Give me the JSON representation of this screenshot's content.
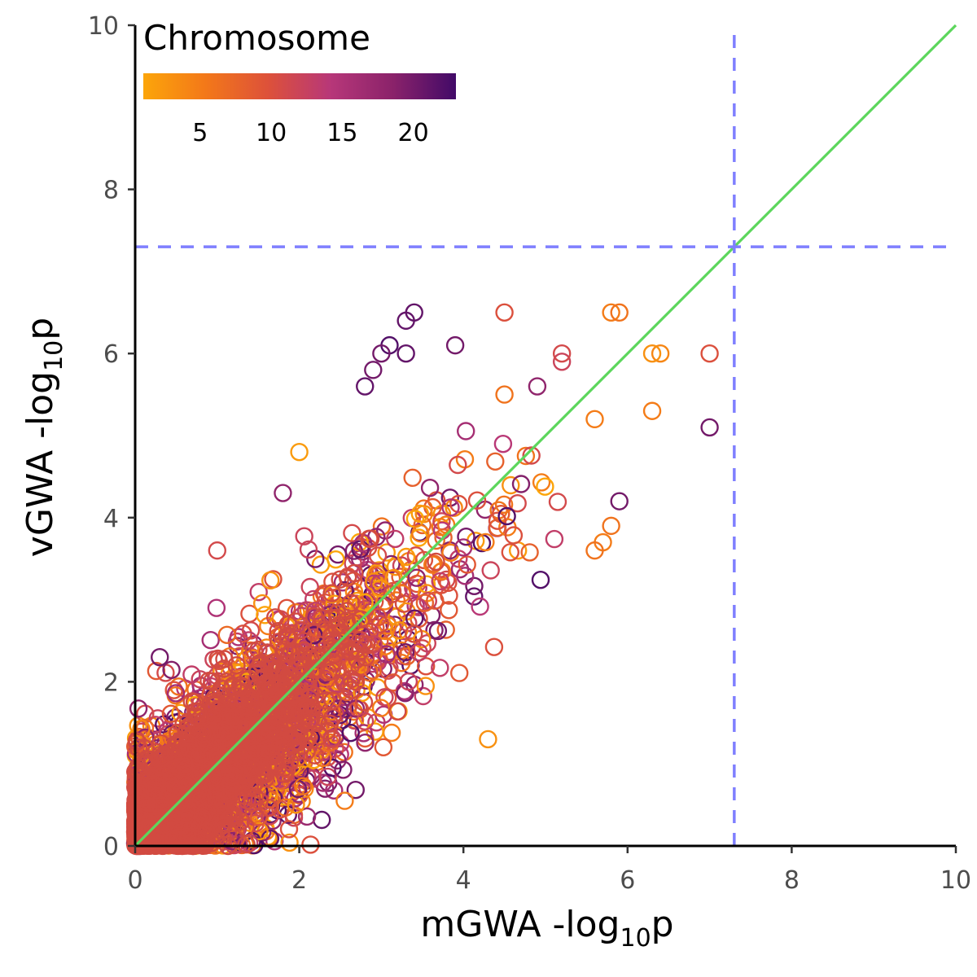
{
  "chart_data": {
    "type": "scatter",
    "xlabel": "mGWA -log10p",
    "ylabel": "vGWA -log10p",
    "xlabel_main": "mGWA -log",
    "xlabel_sub": "10",
    "xlabel_tail": "p",
    "ylabel_main": "vGWA -log",
    "ylabel_sub": "10",
    "ylabel_tail": "p",
    "xlim": [
      0,
      10
    ],
    "ylim": [
      0,
      10
    ],
    "x_ticks": [
      "0",
      "2",
      "4",
      "6",
      "8",
      "10"
    ],
    "y_ticks": [
      "0",
      "2",
      "4",
      "6",
      "8",
      "10"
    ],
    "grid": false,
    "marker": "open-circle",
    "reference_lines": {
      "identity": {
        "from": [
          0,
          0
        ],
        "to": [
          10,
          10
        ],
        "color": "#5cd65c"
      },
      "vertical_threshold": {
        "x": 7.3,
        "color": "#7f7fff",
        "style": "dashed"
      },
      "horizontal_threshold": {
        "y": 7.3,
        "color": "#7f7fff",
        "style": "dashed"
      }
    },
    "legend": {
      "title": "Chromosome",
      "type": "colorbar",
      "placement": "top-left",
      "range": [
        1,
        23
      ],
      "tick_values": [
        5,
        10,
        15,
        20
      ],
      "tick_labels": [
        "5",
        "10",
        "15",
        "20"
      ],
      "colors": [
        "#fca50a",
        "#f37819",
        "#dd513a",
        "#b73779",
        "#8a226a",
        "#420a68"
      ]
    },
    "series_summary": "dense cloud of SNP points along the identity line, most within 0–5 on both axes",
    "highlight_points": [
      {
        "x": 3.4,
        "y": 6.5,
        "chr": 21
      },
      {
        "x": 3.3,
        "y": 6.4,
        "chr": 21
      },
      {
        "x": 3.1,
        "y": 6.1,
        "chr": 22
      },
      {
        "x": 3.0,
        "y": 6.0,
        "chr": 20
      },
      {
        "x": 2.9,
        "y": 5.8,
        "chr": 20
      },
      {
        "x": 2.8,
        "y": 5.6,
        "chr": 21
      },
      {
        "x": 3.3,
        "y": 6.0,
        "chr": 21
      },
      {
        "x": 3.9,
        "y": 6.1,
        "chr": 20
      },
      {
        "x": 4.5,
        "y": 6.5,
        "chr": 10
      },
      {
        "x": 5.2,
        "y": 5.9,
        "chr": 12
      },
      {
        "x": 5.2,
        "y": 6.0,
        "chr": 11
      },
      {
        "x": 5.8,
        "y": 6.5,
        "chr": 5
      },
      {
        "x": 5.9,
        "y": 6.5,
        "chr": 6
      },
      {
        "x": 6.4,
        "y": 6.0,
        "chr": 4
      },
      {
        "x": 6.3,
        "y": 6.0,
        "chr": 3
      },
      {
        "x": 7.0,
        "y": 6.0,
        "chr": 10
      },
      {
        "x": 7.0,
        "y": 5.1,
        "chr": 20
      },
      {
        "x": 6.3,
        "y": 5.3,
        "chr": 5
      },
      {
        "x": 5.6,
        "y": 5.2,
        "chr": 5
      },
      {
        "x": 4.9,
        "y": 5.6,
        "chr": 18
      },
      {
        "x": 4.5,
        "y": 5.5,
        "chr": 6
      },
      {
        "x": 2.0,
        "y": 4.8,
        "chr": 2
      },
      {
        "x": 1.8,
        "y": 4.3,
        "chr": 18
      },
      {
        "x": 5.9,
        "y": 4.2,
        "chr": 20
      },
      {
        "x": 5.8,
        "y": 3.9,
        "chr": 6
      },
      {
        "x": 5.7,
        "y": 3.7,
        "chr": 5
      },
      {
        "x": 5.6,
        "y": 3.6,
        "chr": 6
      },
      {
        "x": 4.3,
        "y": 1.3,
        "chr": 3
      },
      {
        "x": 1.0,
        "y": 3.6,
        "chr": 11
      },
      {
        "x": 0.3,
        "y": 2.3,
        "chr": 20
      }
    ]
  }
}
